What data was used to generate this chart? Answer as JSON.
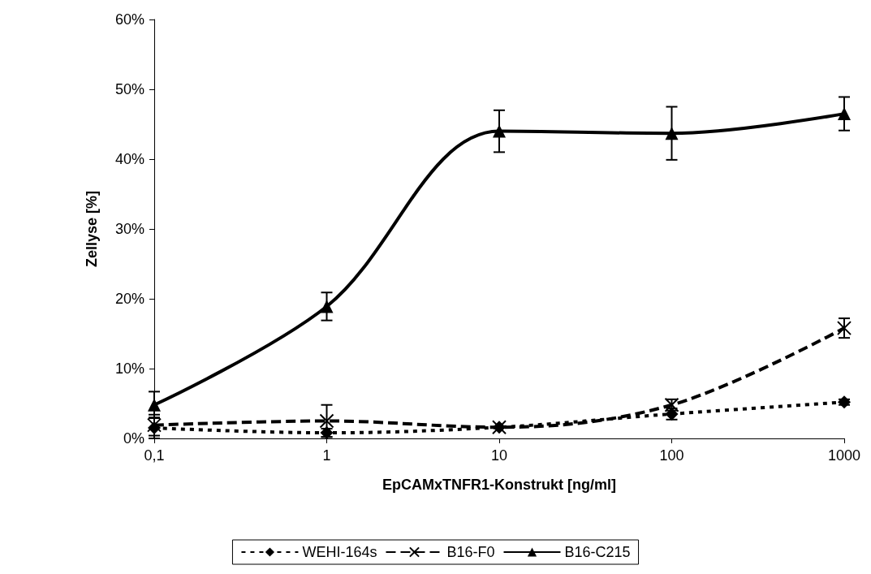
{
  "chart_data": {
    "type": "line",
    "xlabel": "EpCAMxTNFR1-Konstrukt [ng/ml]",
    "ylabel": "Zellyse [%]",
    "x": [
      0.1,
      1,
      10,
      100,
      1000
    ],
    "log": "x",
    "xlim": [
      0.1,
      1000
    ],
    "xticks": [
      {
        "value": 0.1,
        "label": "0,1"
      },
      1,
      10,
      100,
      1000
    ],
    "ylim": [
      0,
      60
    ],
    "yticks": [
      {
        "value": 0,
        "label": "0%"
      },
      {
        "value": 10,
        "label": "10%"
      },
      {
        "value": 20,
        "label": "20%"
      },
      {
        "value": 30,
        "label": "30%"
      },
      {
        "value": 40,
        "label": "40%"
      },
      {
        "value": 50,
        "label": "50%"
      },
      {
        "value": 60,
        "label": "60%"
      }
    ],
    "grid": false,
    "legend": "bottom",
    "series": [
      {
        "name": "WEHI-164s",
        "color": "#000000",
        "marker": "diamond",
        "line_style": "dotted",
        "values": [
          1.5,
          0.8,
          1.6,
          3.5,
          5.2
        ],
        "errors": [
          1.5,
          0.6,
          null,
          0.8,
          0.4
        ]
      },
      {
        "name": "B16-F0",
        "color": "#000000",
        "marker": "cross",
        "line_style": "dashed",
        "values": [
          1.9,
          2.5,
          1.6,
          4.8,
          15.8
        ],
        "errors": [
          1.5,
          2.3,
          null,
          0.8,
          1.4
        ]
      },
      {
        "name": "B16-C215",
        "color": "#000000",
        "marker": "triangle",
        "line_style": "solid",
        "values": [
          4.8,
          18.9,
          44.0,
          43.7,
          46.5
        ],
        "errors": [
          1.9,
          2.0,
          3.0,
          3.8,
          2.4
        ]
      }
    ]
  }
}
